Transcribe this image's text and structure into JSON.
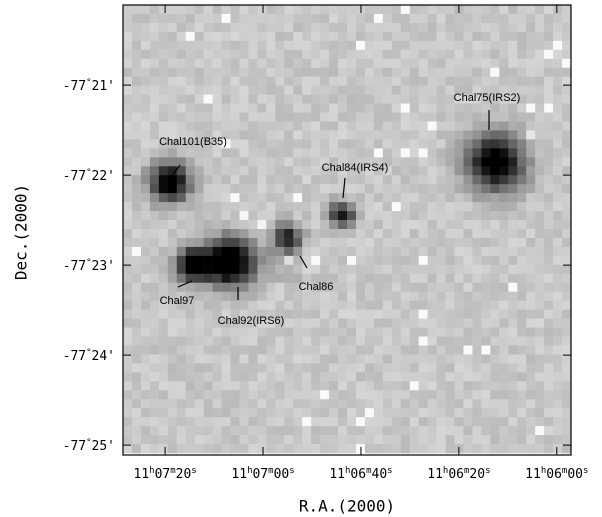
{
  "chart_data": {
    "type": "image",
    "xlabel": "R.A.(2000)",
    "ylabel": "Dec.(2000)",
    "xlim": [
      448.6,
      357.1
    ],
    "xticks": [
      {
        "value": 440,
        "label": "11h07m20s"
      },
      {
        "value": 420,
        "label": "11h07m00s"
      },
      {
        "value": 400,
        "label": "11h06m40s"
      },
      {
        "value": 380,
        "label": "11h06m20s"
      },
      {
        "value": 360,
        "label": "11h06m00s"
      }
    ],
    "ylim": [
      -25.11,
      -20.11
    ],
    "yticks": [
      {
        "value": -21,
        "label": "-77°21'"
      },
      {
        "value": -22,
        "label": "-77°22'"
      },
      {
        "value": -23,
        "label": "-77°23'"
      },
      {
        "value": -24,
        "label": "-77°24'"
      },
      {
        "value": -25,
        "label": "-77°25'"
      }
    ],
    "annotations": [
      "Chal101(B35)",
      "Chal97",
      "Chal92(IRS6)",
      "Chal86",
      "Chal84(IRS4)",
      "Chal75(IRS2)"
    ]
  }
}
